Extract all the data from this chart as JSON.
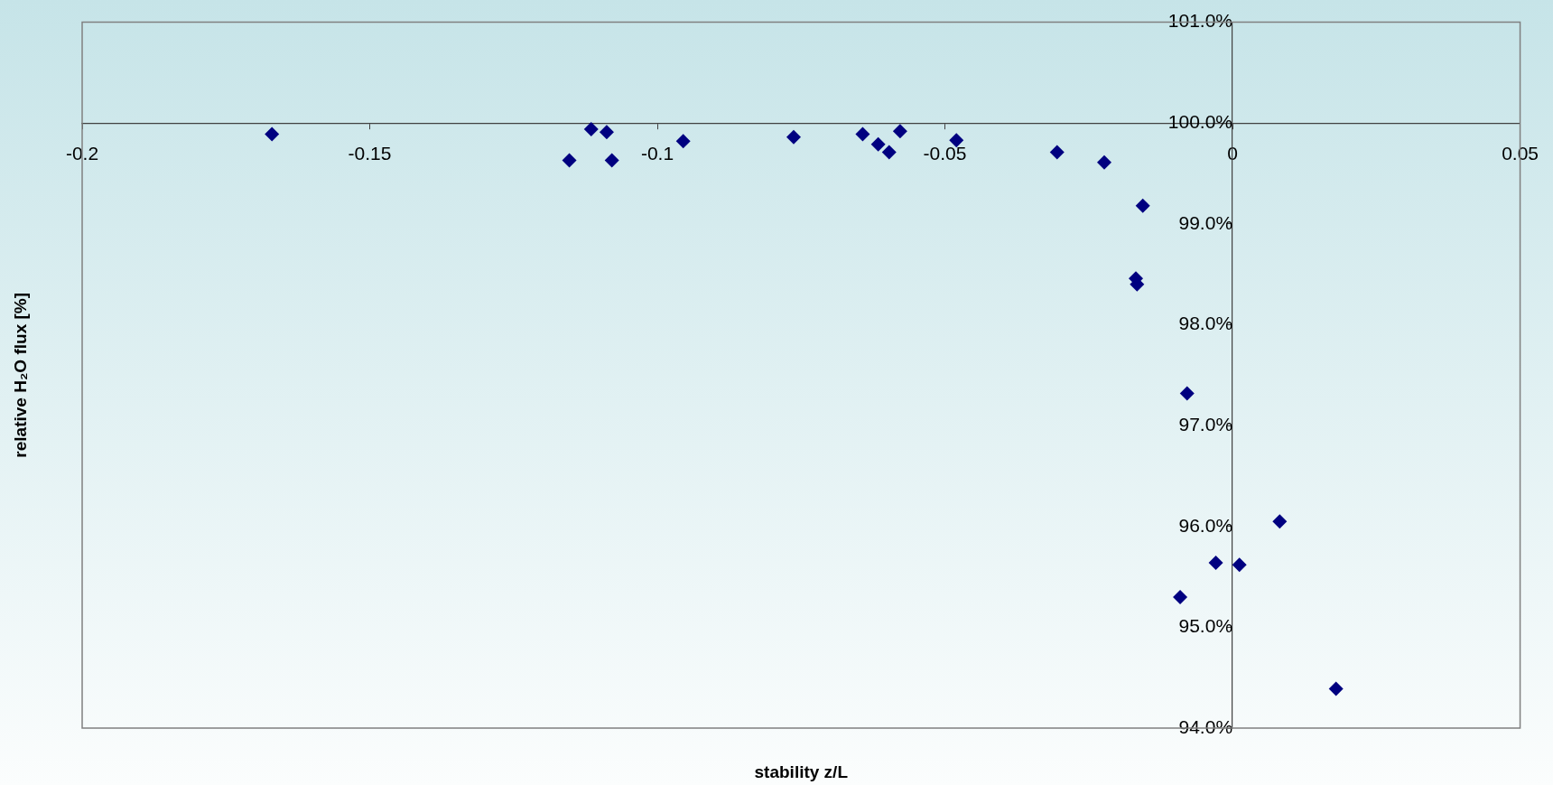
{
  "chart_data": {
    "type": "scatter",
    "xlabel": "stability z/L",
    "ylabel": "relative H₂O flux [%]",
    "x": [
      -0.167,
      -0.1153,
      -0.1115,
      -0.1088,
      -0.1079,
      -0.0955,
      -0.0763,
      -0.0643,
      -0.0616,
      -0.0597,
      -0.0578,
      -0.048,
      -0.0305,
      -0.0223,
      -0.0156,
      -0.0168,
      -0.0166,
      -0.0079,
      -0.0091,
      -0.0029,
      0.0012,
      0.0082,
      0.018
    ],
    "series": [
      {
        "color": "#000080",
        "values": [
          99.89,
          99.63,
          99.94,
          99.91,
          99.63,
          99.82,
          99.86,
          99.89,
          99.79,
          99.71,
          99.92,
          99.83,
          99.71,
          99.61,
          99.18,
          98.46,
          98.4,
          97.32,
          95.3,
          95.64,
          95.62,
          96.05,
          94.39
        ]
      }
    ],
    "marker": "diamond",
    "grid": false,
    "legend": false,
    "xlim": [
      -0.2,
      0.05
    ],
    "xticks": [
      -0.2,
      -0.15,
      -0.1,
      -0.05,
      0,
      0.05
    ],
    "ylim": [
      94,
      101
    ],
    "yticks": [
      {
        "value": 94,
        "label": "94.0%"
      },
      {
        "value": 95,
        "label": "95.0%"
      },
      {
        "value": 96,
        "label": "96.0%"
      },
      {
        "value": 97,
        "label": "97.0%"
      },
      {
        "value": 98,
        "label": "98.0%"
      },
      {
        "value": 99,
        "label": "99.0%"
      },
      {
        "value": 100,
        "label": "100.0%"
      },
      {
        "value": 101,
        "label": "101.0%"
      }
    ]
  }
}
